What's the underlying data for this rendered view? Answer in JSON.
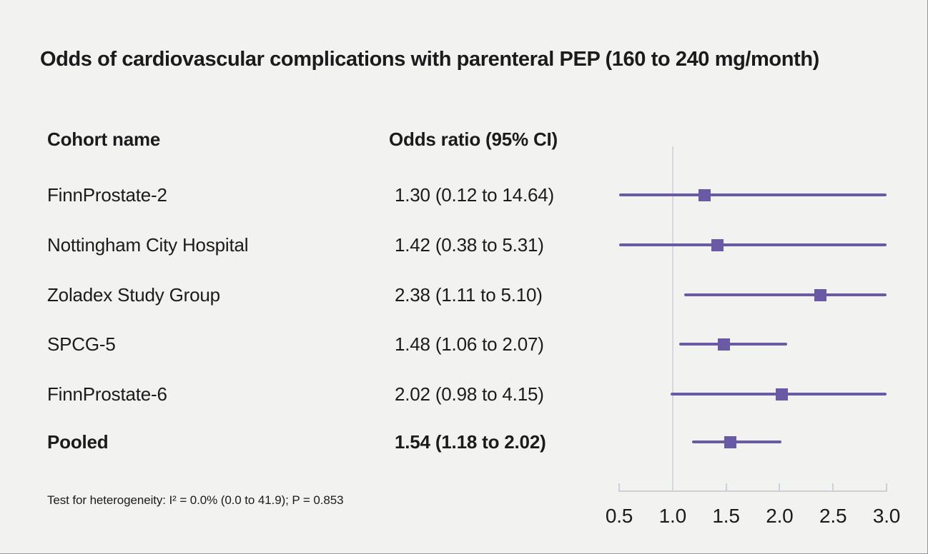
{
  "title": "Odds of cardiovascular complications with parenteral PEP (160 to 240 mg/month)",
  "columns": {
    "cohort": "Cohort name",
    "odds": "Odds ratio (95% CI)"
  },
  "footnote": "Test for heterogeneity: I² = 0.0% (0.0 to 41.9); P = 0.853",
  "colors": {
    "marker": "#6a5aa5",
    "axis": "#ccd2da",
    "reference_line": "#d4d8e0",
    "background": "#f2f2f1",
    "text": "#1b1b1b"
  },
  "chart_data": {
    "type": "forest",
    "title": "Odds of cardiovascular complications with parenteral PEP (160 to 240 mg/month)",
    "xlabel": "Odds ratio",
    "xlim": [
      0.5,
      3.0
    ],
    "x_ticks": [
      0.5,
      1.0,
      1.5,
      2.0,
      2.5,
      3.0
    ],
    "reference_line": 1.0,
    "grid": false,
    "points": [
      {
        "label": "FinnProstate-2",
        "or": 1.3,
        "ci_low": 0.12,
        "ci_high": 14.64,
        "or_text": "1.30 (0.12 to 14.64)",
        "bold": false
      },
      {
        "label": "Nottingham City Hospital",
        "or": 1.42,
        "ci_low": 0.38,
        "ci_high": 5.31,
        "or_text": "1.42 (0.38 to 5.31)",
        "bold": false
      },
      {
        "label": "Zoladex Study Group",
        "or": 2.38,
        "ci_low": 1.11,
        "ci_high": 5.1,
        "or_text": "2.38 (1.11 to 5.10)",
        "bold": false
      },
      {
        "label": "SPCG-5",
        "or": 1.48,
        "ci_low": 1.06,
        "ci_high": 2.07,
        "or_text": "1.48 (1.06 to 2.07)",
        "bold": false
      },
      {
        "label": "FinnProstate-6",
        "or": 2.02,
        "ci_low": 0.98,
        "ci_high": 4.15,
        "or_text": "2.02 (0.98 to 4.15)",
        "bold": false
      },
      {
        "label": "Pooled",
        "or": 1.54,
        "ci_low": 1.18,
        "ci_high": 2.02,
        "or_text": "1.54 (1.18 to 2.02)",
        "bold": true
      }
    ],
    "heterogeneity_note": "Test for heterogeneity: I² = 0.0% (0.0 to 41.9); P = 0.853"
  }
}
